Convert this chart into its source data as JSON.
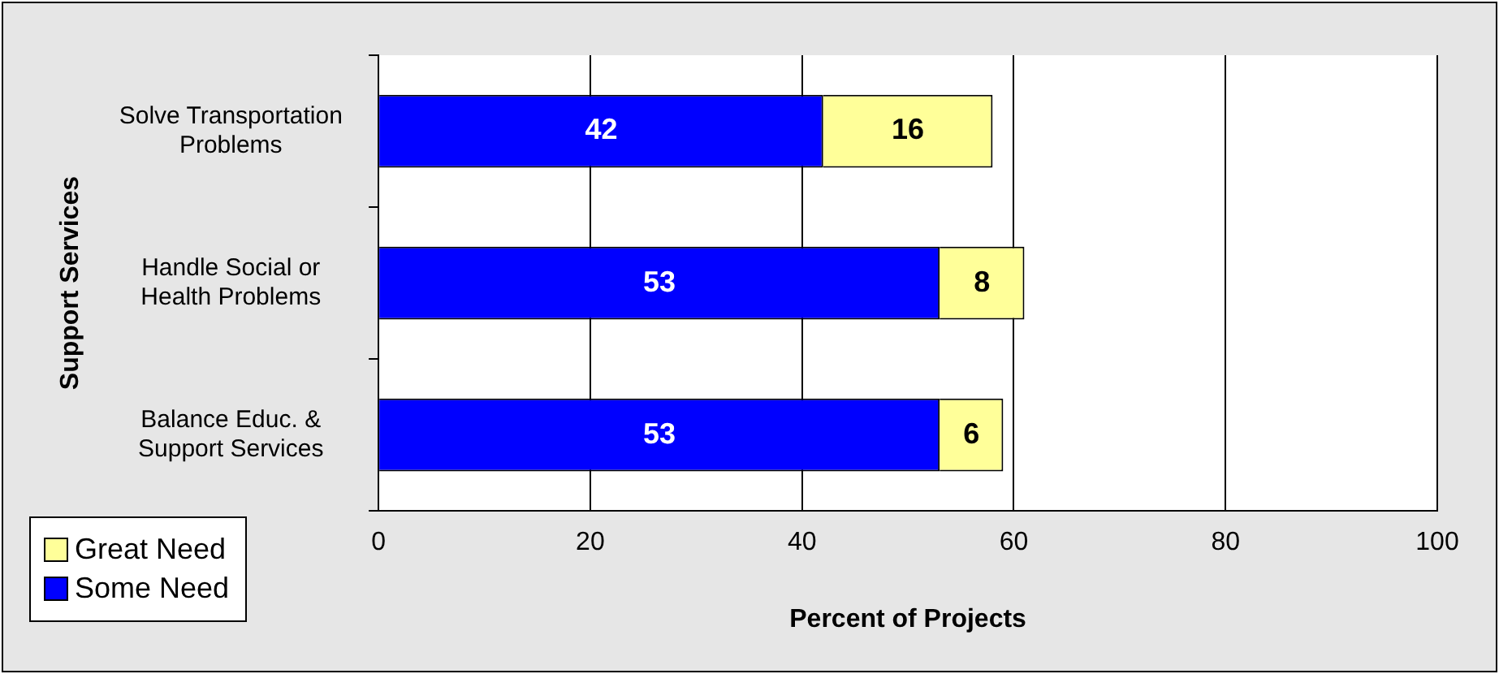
{
  "chart_data": {
    "type": "bar",
    "orientation": "horizontal",
    "stacked": true,
    "xlabel": "Percent of Projects",
    "ylabel": "Support Services",
    "categories": [
      "Solve Transportation Problems",
      "Handle Social or Health Problems",
      "Balance Educ. & Support Services"
    ],
    "series": [
      {
        "name": "Some Need",
        "color": "#0000ff",
        "values": [
          42,
          53,
          53
        ]
      },
      {
        "name": "Great Need",
        "color": "#ffff99",
        "values": [
          16,
          8,
          6
        ]
      }
    ],
    "xlim": [
      0,
      100
    ],
    "xticks": [
      0,
      20,
      40,
      60,
      80,
      100
    ],
    "grid": "x",
    "legend": "bottom left",
    "data_labels": true
  }
}
